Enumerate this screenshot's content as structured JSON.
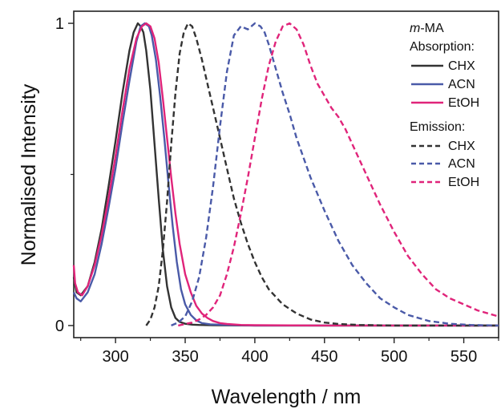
{
  "chart_data": {
    "type": "line",
    "title": "",
    "xlabel": "Wavelength / nm",
    "ylabel": "Normalised Intensity",
    "xlim": [
      270,
      575
    ],
    "ylim": [
      -0.04,
      1.04
    ],
    "x_ticks": [
      300,
      350,
      400,
      450,
      500,
      550
    ],
    "y_ticks": [
      0,
      1
    ],
    "grid": false,
    "legend": {
      "placement": "top-right",
      "title_prefix": "m",
      "title_rest": "-MA",
      "absorption_heading": "Absorption:",
      "emission_heading": "Emission:"
    },
    "series": [
      {
        "name": "CHX",
        "group": "Absorption",
        "color": "#333333",
        "dash": "solid",
        "x": [
          270,
          272,
          275,
          280,
          285,
          290,
          295,
          300,
          305,
          310,
          313,
          316,
          318,
          320,
          322,
          325,
          328,
          331,
          334,
          337,
          340,
          343,
          346,
          350,
          355,
          360,
          370,
          400,
          450,
          575
        ],
        "y": [
          0.16,
          0.11,
          0.1,
          0.13,
          0.21,
          0.32,
          0.46,
          0.61,
          0.77,
          0.91,
          0.97,
          1.0,
          0.99,
          0.97,
          0.91,
          0.78,
          0.6,
          0.42,
          0.25,
          0.13,
          0.06,
          0.025,
          0.012,
          0.006,
          0.003,
          0.002,
          0.001,
          0.0,
          0.0,
          0.0
        ]
      },
      {
        "name": "ACN",
        "group": "Absorption",
        "color": "#4a5aa8",
        "dash": "solid",
        "x": [
          270,
          272,
          275,
          280,
          285,
          290,
          295,
          300,
          305,
          310,
          315,
          318,
          321,
          324,
          326,
          329,
          332,
          335,
          338,
          341,
          344,
          347,
          350,
          354,
          358,
          362,
          368,
          380,
          400,
          450,
          575
        ],
        "y": [
          0.11,
          0.09,
          0.08,
          0.11,
          0.17,
          0.27,
          0.39,
          0.52,
          0.67,
          0.81,
          0.94,
          0.99,
          1.0,
          0.99,
          0.96,
          0.88,
          0.76,
          0.62,
          0.47,
          0.33,
          0.21,
          0.12,
          0.07,
          0.035,
          0.017,
          0.008,
          0.004,
          0.002,
          0.0,
          0.0,
          0.0
        ]
      },
      {
        "name": "EtOH",
        "group": "Absorption",
        "color": "#e0247a",
        "dash": "solid",
        "x": [
          270,
          271,
          273,
          276,
          280,
          285,
          290,
          295,
          300,
          305,
          310,
          315,
          319,
          322,
          325,
          328,
          331,
          334,
          337,
          340,
          343,
          346,
          350,
          354,
          358,
          362,
          366,
          370,
          375,
          380,
          390,
          400,
          450,
          575
        ],
        "y": [
          0.2,
          0.14,
          0.11,
          0.1,
          0.13,
          0.2,
          0.3,
          0.42,
          0.56,
          0.71,
          0.85,
          0.95,
          0.99,
          1.0,
          0.99,
          0.95,
          0.87,
          0.75,
          0.62,
          0.49,
          0.37,
          0.27,
          0.17,
          0.11,
          0.065,
          0.04,
          0.025,
          0.015,
          0.008,
          0.005,
          0.002,
          0.001,
          0.0,
          0.0
        ]
      },
      {
        "name": "CHX",
        "group": "Emission",
        "color": "#333333",
        "dash": "dashed",
        "x": [
          322,
          325,
          328,
          331,
          334,
          337,
          340,
          343,
          346,
          349,
          352,
          355,
          358,
          362,
          366,
          370,
          375,
          380,
          385,
          390,
          395,
          400,
          405,
          410,
          420,
          430,
          440,
          450,
          460,
          475,
          500,
          575
        ],
        "y": [
          0.0,
          0.02,
          0.06,
          0.13,
          0.25,
          0.41,
          0.6,
          0.77,
          0.9,
          0.97,
          1.0,
          0.99,
          0.95,
          0.88,
          0.8,
          0.72,
          0.62,
          0.52,
          0.42,
          0.34,
          0.27,
          0.21,
          0.16,
          0.12,
          0.07,
          0.04,
          0.02,
          0.01,
          0.005,
          0.002,
          0.0,
          0.0
        ]
      },
      {
        "name": "ACN",
        "group": "Emission",
        "color": "#4a5aa8",
        "dash": "dashed",
        "x": [
          340,
          345,
          350,
          355,
          360,
          365,
          370,
          375,
          380,
          385,
          390,
          395,
          400,
          404,
          407,
          410,
          415,
          420,
          425,
          430,
          440,
          450,
          460,
          470,
          480,
          490,
          500,
          510,
          525,
          540,
          555,
          575
        ],
        "y": [
          0.0,
          0.01,
          0.03,
          0.08,
          0.16,
          0.29,
          0.46,
          0.66,
          0.84,
          0.96,
          0.99,
          0.98,
          1.0,
          0.99,
          0.97,
          0.93,
          0.85,
          0.77,
          0.7,
          0.62,
          0.49,
          0.38,
          0.28,
          0.2,
          0.14,
          0.09,
          0.06,
          0.035,
          0.015,
          0.006,
          0.002,
          0.0
        ]
      },
      {
        "name": "EtOH",
        "group": "Emission",
        "color": "#e0247a",
        "dash": "dashed",
        "x": [
          345,
          350,
          355,
          360,
          365,
          370,
          375,
          380,
          385,
          390,
          395,
          400,
          405,
          410,
          415,
          420,
          425,
          430,
          435,
          440,
          445,
          450,
          455,
          460,
          465,
          470,
          480,
          490,
          500,
          510,
          520,
          530,
          540,
          550,
          560,
          575
        ],
        "y": [
          0.0,
          0.005,
          0.01,
          0.02,
          0.035,
          0.06,
          0.1,
          0.17,
          0.26,
          0.37,
          0.49,
          0.62,
          0.75,
          0.86,
          0.94,
          0.99,
          1.0,
          0.98,
          0.93,
          0.86,
          0.8,
          0.76,
          0.72,
          0.69,
          0.65,
          0.6,
          0.5,
          0.4,
          0.31,
          0.23,
          0.17,
          0.12,
          0.09,
          0.07,
          0.05,
          0.03
        ]
      }
    ]
  }
}
